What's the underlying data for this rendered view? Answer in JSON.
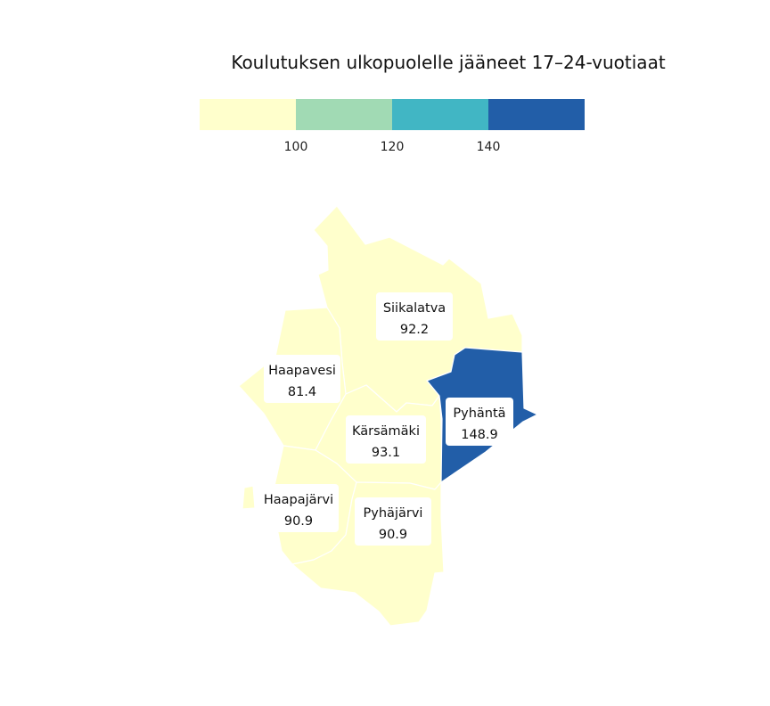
{
  "title": "Koulutuksen ulkopuolelle jääneet 17–24-vuotiaat",
  "legend": {
    "breaks": [
      "100",
      "120",
      "140"
    ],
    "colors": [
      "#ffffcc",
      "#a1dab4",
      "#41b6c4",
      "#225ea8"
    ]
  },
  "municipalities": [
    {
      "key": "siikalatva",
      "name": "Siikalatva",
      "value": "92.2",
      "color": "#ffffcc"
    },
    {
      "key": "haapavesi",
      "name": "Haapavesi",
      "value": "81.4",
      "color": "#ffffcc"
    },
    {
      "key": "karsamaki",
      "name": "Kärsämäki",
      "value": "93.1",
      "color": "#ffffcc"
    },
    {
      "key": "pyhanta",
      "name": "Pyhäntä",
      "value": "148.9",
      "color": "#225ea8"
    },
    {
      "key": "haapajarvi",
      "name": "Haapajärvi",
      "value": "90.9",
      "color": "#ffffcc"
    },
    {
      "key": "pyhajarvi",
      "name": "Pyhäjärvi",
      "value": "90.9",
      "color": "#ffffcc"
    }
  ]
}
